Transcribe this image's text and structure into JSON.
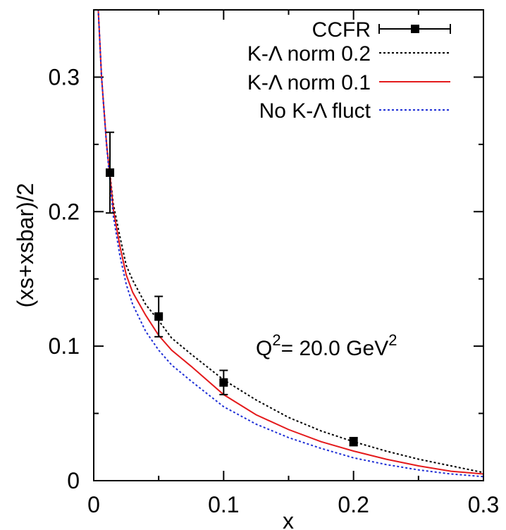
{
  "chart_data": {
    "type": "line",
    "xlabel": "x",
    "ylabel": "(xs+xsbar)/2",
    "xlim": [
      0,
      0.3
    ],
    "ylim": [
      0,
      0.35
    ],
    "xticks": [
      0,
      0.1,
      0.2,
      0.3
    ],
    "xtick_labels": [
      "0",
      "0.1",
      "0.2",
      "0.3"
    ],
    "yticks": [
      0,
      0.1,
      0.2,
      0.3
    ],
    "ytick_labels": [
      "0",
      "0.1",
      "0.2",
      "0.3"
    ],
    "grid": false,
    "legend_position": "top-right",
    "annotation": {
      "base": "Q",
      "sup1": "2",
      "mid": "= 20.0 GeV",
      "sup2": "2"
    },
    "series": [
      {
        "name": "CCFR",
        "kind": "points",
        "color": "#000000",
        "marker": "square",
        "points": [
          {
            "x": 0.0125,
            "y": 0.229,
            "err": 0.03
          },
          {
            "x": 0.05,
            "y": 0.122,
            "err": 0.015
          },
          {
            "x": 0.1,
            "y": 0.073,
            "err": 0.009
          },
          {
            "x": 0.2,
            "y": 0.029,
            "err": 0.003
          }
        ]
      },
      {
        "name": "K-Λ norm 0.2",
        "kind": "line",
        "color": "#000000",
        "dash": "dotted",
        "x": [
          0.003,
          0.006,
          0.01,
          0.0125,
          0.015,
          0.02,
          0.025,
          0.03,
          0.04,
          0.05,
          0.06,
          0.075,
          0.1,
          0.125,
          0.15,
          0.175,
          0.2,
          0.225,
          0.25,
          0.275,
          0.3
        ],
        "y": [
          0.36,
          0.3,
          0.249,
          0.228,
          0.206,
          0.182,
          0.16,
          0.149,
          0.131,
          0.119,
          0.106,
          0.094,
          0.075,
          0.06,
          0.047,
          0.037,
          0.029,
          0.022,
          0.016,
          0.011,
          0.006
        ]
      },
      {
        "name": "K-Λ norm 0.1",
        "kind": "line",
        "color": "#e41a1c",
        "dash": "solid",
        "x": [
          0.003,
          0.006,
          0.01,
          0.0125,
          0.015,
          0.02,
          0.025,
          0.03,
          0.04,
          0.05,
          0.06,
          0.075,
          0.1,
          0.125,
          0.15,
          0.175,
          0.2,
          0.225,
          0.25,
          0.275,
          0.3
        ],
        "y": [
          0.36,
          0.3,
          0.249,
          0.227,
          0.202,
          0.175,
          0.153,
          0.14,
          0.123,
          0.108,
          0.097,
          0.085,
          0.064,
          0.049,
          0.038,
          0.029,
          0.022,
          0.016,
          0.011,
          0.007,
          0.005
        ]
      },
      {
        "name": "No K-Λ fluct",
        "kind": "line",
        "color": "#1f2fd6",
        "dash": "dotted",
        "x": [
          0.003,
          0.006,
          0.01,
          0.0125,
          0.015,
          0.02,
          0.025,
          0.03,
          0.04,
          0.05,
          0.06,
          0.075,
          0.1,
          0.125,
          0.15,
          0.175,
          0.2,
          0.225,
          0.25,
          0.275,
          0.3
        ],
        "y": [
          0.36,
          0.3,
          0.248,
          0.223,
          0.197,
          0.168,
          0.146,
          0.131,
          0.111,
          0.097,
          0.086,
          0.074,
          0.055,
          0.042,
          0.032,
          0.024,
          0.017,
          0.012,
          0.008,
          0.005,
          0.003
        ]
      }
    ]
  }
}
